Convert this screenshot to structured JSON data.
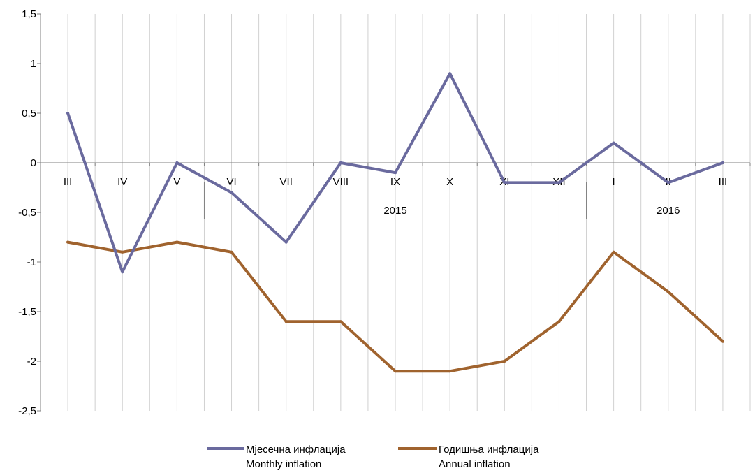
{
  "chart_data": {
    "type": "line",
    "categories": [
      "III",
      "IV",
      "V",
      "VI",
      "VII",
      "VIII",
      "IX",
      "X",
      "XI",
      "XII",
      "I",
      "II",
      "III"
    ],
    "year_labels": [
      {
        "label": "2015",
        "category_index": 6
      },
      {
        "label": "2016",
        "category_index": 11
      }
    ],
    "series": [
      {
        "name": "Мјесечна инфлација",
        "name_en": "Monthly inflation",
        "color": "#6a6a9e",
        "values": [
          0.5,
          -1.1,
          0.0,
          -0.3,
          -0.8,
          0.0,
          -0.1,
          0.9,
          -0.2,
          -0.2,
          0.2,
          -0.2,
          0.0
        ]
      },
      {
        "name": "Годишња инфлација",
        "name_en": "Annual inflation",
        "color": "#a0632e",
        "values": [
          -0.8,
          -0.9,
          -0.8,
          -0.9,
          -1.6,
          -1.6,
          -2.1,
          -2.1,
          -2.0,
          -1.6,
          -0.9,
          -1.3,
          -1.8
        ]
      }
    ],
    "y_ticks": [
      "1,5",
      "1",
      "0,5",
      "0",
      "-0,5",
      "-1",
      "-1,5",
      "-2",
      "-2,5"
    ],
    "ylim": [
      -2.5,
      1.5
    ],
    "grid": "vertical",
    "legend_position": "bottom-center",
    "title": "",
    "xlabel": "",
    "ylabel": ""
  }
}
